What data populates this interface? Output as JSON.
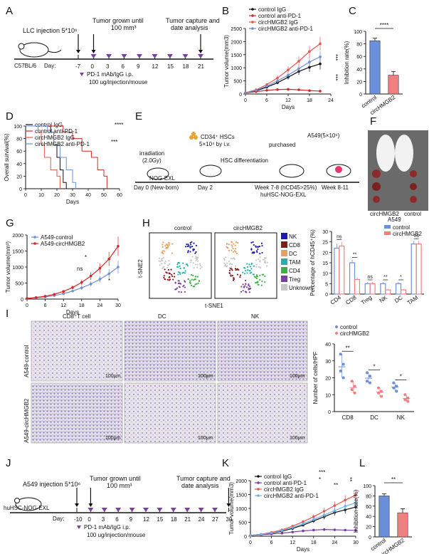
{
  "figure": {
    "panels": [
      "A",
      "B",
      "C",
      "D",
      "E",
      "F",
      "G",
      "H",
      "I",
      "J",
      "K",
      "L"
    ]
  },
  "panel_a": {
    "injection": "LLC injection 5*10⁶",
    "tumor_grown": "Tumor grown until",
    "tumor_size": "100 mm³",
    "capture": "Tumor capture and",
    "analysis": "date analysis",
    "mouse": "C57BL/6",
    "day_label": "Day:",
    "days": [
      "-7",
      "0",
      "3",
      "6",
      "9",
      "12",
      "15",
      "18",
      "21"
    ],
    "legend1": "PD-1 mAb/IgG i.p.",
    "legend2": "100 ug/injection/mouse"
  },
  "panel_e": {
    "irradiation": "irradiation",
    "dose": "(2.0Gy)",
    "mouse": "NOG-EXL",
    "hsc": "CD34⁺ HSCs",
    "hsc_dose": "5×10⁴ by i.v.",
    "diff": "HSC differentiation",
    "purchased": "purchased",
    "a549": "A549(5×10⁶)",
    "day0": "Day 0 (New-born)",
    "day2": "Day 2",
    "week78": "Week 7-8 (hCD45>25%)",
    "hu": "huHSC-NOG-EXL",
    "week811": "Week 8-11"
  },
  "panel_f": {
    "labels": [
      "circHMGB2",
      "control"
    ],
    "cell": "A549"
  },
  "panel_h": {
    "tsne_titles": [
      "control",
      "circHMGB2"
    ],
    "tsne_x": "t-SNE1",
    "tsne_y": "t-SNE2",
    "legend": [
      "NK",
      "CD8",
      "DC",
      "TAM",
      "CD4",
      "Treg",
      "Unknown"
    ],
    "legend_colors": [
      "#1a1ab0",
      "#8b1a1a",
      "#e8a060",
      "#20b2aa",
      "#3cb043",
      "#7b3fa0",
      "#c8c8c8"
    ]
  },
  "panel_i": {
    "col_titles": [
      "CD8⁺T cell",
      "DC",
      "NK"
    ],
    "row_titles": [
      "A549-control",
      "A549-circHMGB2"
    ],
    "scale": [
      "100μm",
      "100μm",
      "100μm",
      "100μm",
      "100μm",
      "100μm"
    ]
  },
  "panel_j": {
    "injection": "A549 injection 5*10⁶",
    "tumor_grown": "Tumor grown until",
    "tumor_size": "100 mm³",
    "capture": "Tumor capture and",
    "analysis": "date analysis",
    "mouse": "huHSC-NOG-EXL",
    "day_label": "Day:",
    "days": [
      "-10",
      "0",
      "3",
      "6",
      "9",
      "12",
      "15",
      "18",
      "21",
      "24",
      "27",
      "30"
    ],
    "legend1": "PD-1 mAb/IgG i.p.",
    "legend2": "100 ug/injection/mouse"
  },
  "chart_data": [
    {
      "id": "B",
      "type": "line",
      "xlabel": "Days",
      "ylabel": "Tumor volume(mm3)",
      "xlim": [
        0,
        24
      ],
      "ylim": [
        0,
        2500
      ],
      "xticks": [
        0,
        6,
        12,
        18,
        24
      ],
      "yticks": [
        0,
        500,
        1000,
        1500,
        2000,
        2500
      ],
      "x": [
        0,
        3,
        6,
        9,
        12,
        15,
        18,
        21
      ],
      "series": [
        {
          "name": "control IgG",
          "color": "#111111",
          "values": [
            40,
            120,
            260,
            430,
            640,
            860,
            1020,
            1150
          ],
          "err": [
            10,
            20,
            35,
            60,
            90,
            130,
            180,
            220
          ]
        },
        {
          "name": "control anti-PD-1",
          "color": "#d62728",
          "values": [
            40,
            90,
            140,
            170,
            180,
            160,
            130,
            110
          ],
          "err": [
            8,
            15,
            25,
            30,
            30,
            30,
            25,
            20
          ]
        },
        {
          "name": "circHMGB2 IgG",
          "color": "#e8554e",
          "values": [
            50,
            160,
            360,
            610,
            920,
            1250,
            1620,
            1920
          ],
          "err": [
            10,
            30,
            60,
            100,
            140,
            180,
            220,
            260
          ]
        },
        {
          "name": "circHMGB2 anti-PD-1",
          "color": "#6b8fd8",
          "values": [
            45,
            140,
            300,
            500,
            720,
            970,
            1220,
            1420
          ],
          "err": [
            10,
            25,
            50,
            80,
            110,
            140,
            180,
            210
          ]
        }
      ],
      "annotations": [
        "***",
        "***"
      ]
    },
    {
      "id": "C",
      "type": "bar",
      "ylabel": "Inhibition rate(%)",
      "categories": [
        "control",
        "circHMGB2"
      ],
      "values": [
        85,
        30
      ],
      "err": [
        4,
        6
      ],
      "colors": [
        "#6b8fd8",
        "#f08080"
      ],
      "ylim": [
        0,
        100
      ],
      "yticks": [
        0,
        20,
        40,
        60,
        80,
        100
      ],
      "annotation": "****"
    },
    {
      "id": "D",
      "type": "line",
      "xlabel": "Days",
      "ylabel": "Overall survival(%)",
      "xlim": [
        0,
        60
      ],
      "ylim": [
        0,
        100
      ],
      "xticks": [
        0,
        10,
        20,
        30,
        40,
        50,
        60
      ],
      "yticks": [
        0,
        20,
        40,
        60,
        80,
        100
      ],
      "series": [
        {
          "name": "control IgG",
          "color": "#111111",
          "steps": [
            [
              0,
              100
            ],
            [
              16,
              100
            ],
            [
              16,
              90
            ],
            [
              18,
              90
            ],
            [
              18,
              70
            ],
            [
              20,
              70
            ],
            [
              20,
              50
            ],
            [
              22,
              50
            ],
            [
              22,
              30
            ],
            [
              24,
              30
            ],
            [
              24,
              10
            ],
            [
              26,
              10
            ],
            [
              26,
              0
            ]
          ]
        },
        {
          "name": "control anti-PD-1",
          "color": "#d62728",
          "steps": [
            [
              0,
              100
            ],
            [
              24,
              100
            ],
            [
              24,
              90
            ],
            [
              30,
              90
            ],
            [
              30,
              80
            ],
            [
              36,
              80
            ],
            [
              36,
              60
            ],
            [
              42,
              60
            ],
            [
              42,
              50
            ],
            [
              46,
              50
            ],
            [
              46,
              30
            ],
            [
              50,
              30
            ],
            [
              50,
              20
            ],
            [
              52,
              20
            ],
            [
              52,
              0
            ]
          ]
        },
        {
          "name": "circHMGB2 IgG",
          "color": "#e8554e",
          "steps": [
            [
              0,
              100
            ],
            [
              8,
              100
            ],
            [
              8,
              90
            ],
            [
              10,
              90
            ],
            [
              10,
              70
            ],
            [
              12,
              70
            ],
            [
              12,
              50
            ],
            [
              16,
              50
            ],
            [
              16,
              30
            ],
            [
              20,
              30
            ],
            [
              20,
              20
            ],
            [
              22,
              20
            ],
            [
              22,
              0
            ]
          ]
        },
        {
          "name": "circHMGB2 anti-PD-1",
          "color": "#6b8fd8",
          "steps": [
            [
              0,
              100
            ],
            [
              14,
              100
            ],
            [
              14,
              90
            ],
            [
              18,
              90
            ],
            [
              18,
              70
            ],
            [
              22,
              70
            ],
            [
              22,
              50
            ],
            [
              26,
              50
            ],
            [
              26,
              30
            ],
            [
              30,
              30
            ],
            [
              30,
              10
            ],
            [
              32,
              10
            ],
            [
              32,
              0
            ]
          ]
        }
      ],
      "annotations": [
        "****",
        "***"
      ]
    },
    {
      "id": "G",
      "type": "line",
      "xlabel": "Days",
      "ylabel": "Tumor volume(mm³)",
      "xlim": [
        0,
        30
      ],
      "ylim": [
        0,
        2000
      ],
      "xticks": [
        0,
        6,
        12,
        18,
        24,
        30
      ],
      "yticks": [
        0,
        500,
        1000,
        1500,
        2000
      ],
      "x": [
        0,
        3,
        6,
        9,
        12,
        15,
        18,
        21,
        24,
        27,
        30
      ],
      "series": [
        {
          "name": "A549-control",
          "color": "#6b8fd8",
          "values": [
            20,
            40,
            70,
            110,
            170,
            250,
            350,
            470,
            620,
            790,
            1000
          ],
          "err": [
            5,
            10,
            15,
            20,
            30,
            40,
            60,
            80,
            100,
            140,
            200
          ]
        },
        {
          "name": "A549-circHMGB2",
          "color": "#d62728",
          "values": [
            20,
            50,
            90,
            150,
            240,
            360,
            520,
            720,
            960,
            1250,
            1650
          ],
          "err": [
            5,
            10,
            20,
            30,
            40,
            60,
            90,
            120,
            160,
            220,
            300
          ]
        }
      ],
      "annotations": [
        "ns",
        "*",
        "*"
      ]
    },
    {
      "id": "H",
      "type": "bar",
      "ylabel": "Percentage of hCD45⁺(%)",
      "categories": [
        "CD4",
        "CD8",
        "Treg",
        "NK",
        "DC",
        "TAM"
      ],
      "series": [
        {
          "name": "control",
          "color": "#6b8fd8",
          "values": [
            22,
            15,
            5,
            5,
            5,
            24
          ],
          "err": [
            2,
            1.5,
            0.8,
            0.8,
            0.8,
            1.5
          ]
        },
        {
          "name": "circHMGB2",
          "color": "#f08080",
          "values": [
            23,
            7,
            5,
            2,
            2,
            24
          ],
          "err": [
            2,
            1,
            0.8,
            0.5,
            0.5,
            1.5
          ]
        }
      ],
      "ylim": [
        0,
        30
      ],
      "yticks": [
        0,
        5,
        10,
        15,
        20,
        25,
        30
      ],
      "annotations": [
        "ns",
        "**",
        "ns",
        "**",
        "*",
        "ns"
      ]
    },
    {
      "id": "I",
      "type": "scatter",
      "ylabel": "Number of cells/HPF",
      "categories": [
        "CD8",
        "DC",
        "NK"
      ],
      "series": [
        {
          "name": "control",
          "color": "#6b8fd8",
          "points": [
            [
              34,
              28,
              24,
              20
            ],
            [
              23,
              21,
              18,
              17
            ],
            [
              17,
              15,
              14,
              12
            ]
          ]
        },
        {
          "name": "circHMGB2",
          "color": "#f08080",
          "points": [
            [
              18,
              15,
              13,
              11
            ],
            [
              14,
              12,
              11,
              9
            ],
            [
              10,
              8,
              7,
              6
            ]
          ]
        }
      ],
      "ylim": [
        0,
        40
      ],
      "yticks": [
        0,
        10,
        20,
        30,
        40
      ],
      "annotations": [
        "**",
        "*",
        "*"
      ]
    },
    {
      "id": "K",
      "type": "line",
      "xlabel": "Days",
      "ylabel": "Tumor volume(mm3)",
      "xlim": [
        0,
        30
      ],
      "ylim": [
        0,
        2000
      ],
      "xticks": [
        0,
        6,
        12,
        18,
        24,
        30
      ],
      "yticks": [
        0,
        500,
        1000,
        1500,
        2000
      ],
      "x": [
        0,
        3,
        6,
        9,
        12,
        15,
        18,
        21,
        24,
        27,
        30
      ],
      "series": [
        {
          "name": "control IgG",
          "color": "#111111",
          "values": [
            30,
            60,
            110,
            180,
            280,
            400,
            550,
            700,
            850,
            950,
            1050
          ],
          "err": [
            5,
            10,
            15,
            25,
            40,
            55,
            70,
            90,
            110,
            130,
            150
          ]
        },
        {
          "name": "control anti-PD-1",
          "color": "#7b3fa0",
          "values": [
            30,
            50,
            80,
            110,
            150,
            190,
            220,
            240,
            230,
            220,
            210
          ],
          "err": [
            5,
            8,
            12,
            18,
            22,
            28,
            30,
            35,
            35,
            35,
            35
          ]
        },
        {
          "name": "circHMGB2 IgG",
          "color": "#e8554e",
          "values": [
            30,
            70,
            140,
            230,
            360,
            520,
            700,
            900,
            1100,
            1300,
            1480
          ],
          "err": [
            5,
            12,
            20,
            35,
            50,
            70,
            90,
            120,
            150,
            180,
            200
          ]
        },
        {
          "name": "circHMGB2 anti-PD-1",
          "color": "#6bb0e8",
          "values": [
            30,
            65,
            120,
            200,
            310,
            450,
            600,
            760,
            920,
            1080,
            1200
          ],
          "err": [
            5,
            10,
            18,
            30,
            45,
            60,
            80,
            100,
            120,
            140,
            170
          ]
        }
      ],
      "annotations": [
        "***",
        "*",
        "**",
        "**"
      ]
    },
    {
      "id": "L",
      "type": "bar",
      "ylabel": "Inhibition rate(%)",
      "categories": [
        "control",
        "circHMGB2"
      ],
      "values": [
        80,
        47
      ],
      "err": [
        4,
        8
      ],
      "colors": [
        "#6b8fd8",
        "#f08080"
      ],
      "ylim": [
        0,
        100
      ],
      "yticks": [
        0,
        20,
        40,
        60,
        80,
        100
      ],
      "annotation": "**"
    }
  ]
}
